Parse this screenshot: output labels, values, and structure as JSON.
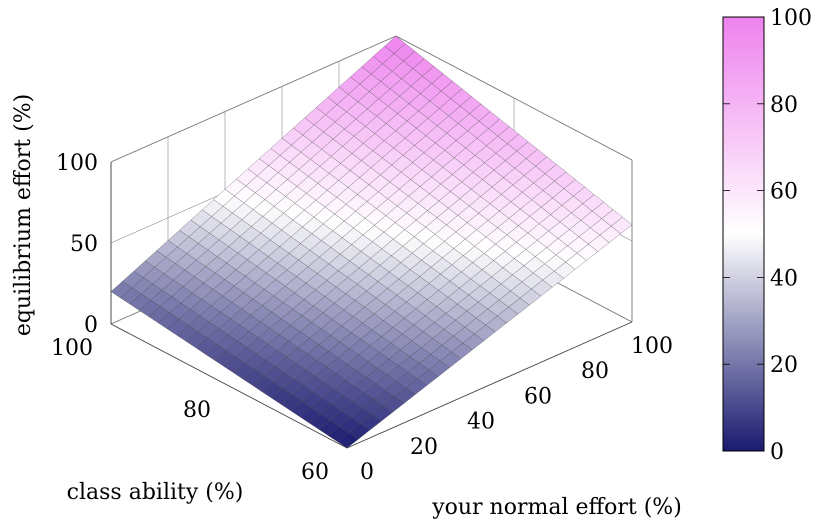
{
  "chart_data": {
    "type": "surface",
    "x_axis": {
      "label": "your normal effort (%)",
      "range": [
        0,
        100
      ],
      "ticks": [
        0,
        20,
        40,
        60,
        80,
        100
      ],
      "tick_labels": [
        "0",
        "20",
        "40",
        "60",
        "80",
        "100"
      ]
    },
    "y_axis": {
      "label": "class ability (%)",
      "range": [
        60,
        100
      ],
      "ticks": [
        60,
        80,
        100
      ],
      "tick_labels": [
        "60",
        "80",
        "100"
      ]
    },
    "z_axis": {
      "label": "equilibrium effort (%)",
      "range": [
        0,
        100
      ],
      "ticks": [
        0,
        50,
        100
      ],
      "tick_labels": [
        "0",
        "50",
        "100"
      ]
    },
    "corner_values": [
      {
        "x": 0,
        "y": 60,
        "z": 0
      },
      {
        "x": 100,
        "y": 60,
        "z": 60
      },
      {
        "x": 0,
        "y": 100,
        "z": 20
      },
      {
        "x": 100,
        "y": 100,
        "z": 100
      }
    ],
    "colorbar": {
      "range": [
        0,
        100
      ],
      "ticks": [
        0,
        20,
        40,
        60,
        80,
        100
      ],
      "tick_labels": [
        "0",
        "20",
        "40",
        "60",
        "80",
        "100"
      ],
      "colors": [
        "#1a1a70",
        "#ffffff",
        "#ee82ee"
      ]
    },
    "grid": true
  }
}
